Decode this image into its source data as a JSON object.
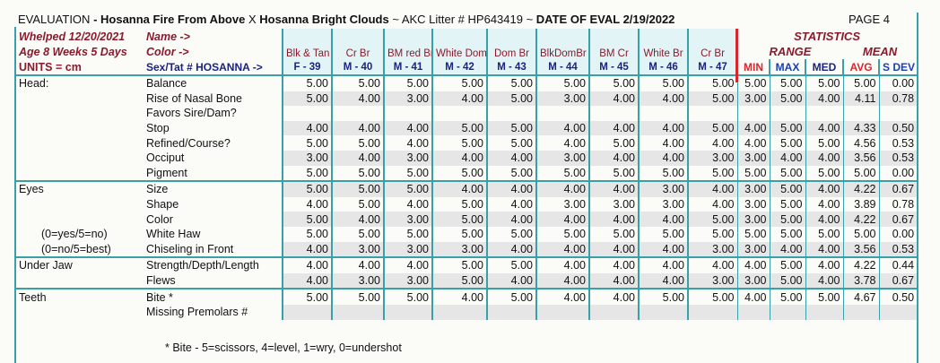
{
  "header": {
    "title": {
      "evaluation": "EVALUATION",
      "sire": "- Hosanna Fire From Above",
      "x": "X",
      "dam": "Hosanna Bright Clouds",
      "litter": "~ AKC Litter # HP643419 ~",
      "date": "DATE OF EVAL 2/19/2022"
    },
    "page": "PAGE 4"
  },
  "info": {
    "whelped": "Whelped 12/20/2021",
    "name": "Name ->",
    "age": "Age 8 Weeks 5 Days",
    "color": "Color ->",
    "units": "UNITS = cm",
    "sex": "Sex/Tat # HOSANNA ->"
  },
  "pups": [
    {
      "color": "Blk & Tan",
      "tat": "F - 39"
    },
    {
      "color": "Cr Br",
      "tat": "M - 40"
    },
    {
      "color": "BM red Br",
      "tat": "M - 41"
    },
    {
      "color": "White Dom",
      "tat": "M - 42"
    },
    {
      "color": "Dom Br",
      "tat": "M - 43"
    },
    {
      "color": "BlkDomBr",
      "tat": "M - 44"
    },
    {
      "color": "BM Cr",
      "tat": "M - 45"
    },
    {
      "color": "White Br",
      "tat": "M - 46"
    },
    {
      "color": "Cr Br",
      "tat": "M - 47"
    }
  ],
  "stats": {
    "title": "STATISTICS",
    "range": "RANGE",
    "mean": "MEAN",
    "columns": [
      "MIN",
      "MAX",
      "MED",
      "AVG",
      "S DEV"
    ]
  },
  "rows": [
    {
      "group": "Head:",
      "label": "Balance",
      "values": [
        "5.00",
        "5.00",
        "5.00",
        "5.00",
        "5.00",
        "5.00",
        "5.00",
        "5.00",
        "5.00"
      ],
      "stats": [
        "5.00",
        "5.00",
        "5.00",
        "5.00",
        "0.00"
      ]
    },
    {
      "label": "Rise of Nasal Bone",
      "values": [
        "5.00",
        "4.00",
        "3.00",
        "4.00",
        "5.00",
        "3.00",
        "4.00",
        "4.00",
        "5.00"
      ],
      "stats": [
        "3.00",
        "5.00",
        "4.00",
        "4.11",
        "0.78"
      ]
    },
    {
      "label": "Favors Sire/Dam?"
    },
    {
      "label": "Stop",
      "values": [
        "4.00",
        "4.00",
        "4.00",
        "5.00",
        "5.00",
        "4.00",
        "4.00",
        "4.00",
        "5.00"
      ],
      "stats": [
        "4.00",
        "5.00",
        "4.00",
        "4.33",
        "0.50"
      ]
    },
    {
      "label": "Refined/Course?",
      "values": [
        "5.00",
        "5.00",
        "4.00",
        "5.00",
        "5.00",
        "4.00",
        "5.00",
        "4.00",
        "4.00"
      ],
      "stats": [
        "4.00",
        "5.00",
        "5.00",
        "4.56",
        "0.53"
      ]
    },
    {
      "label": "Occiput",
      "values": [
        "3.00",
        "4.00",
        "3.00",
        "4.00",
        "4.00",
        "3.00",
        "4.00",
        "4.00",
        "3.00"
      ],
      "stats": [
        "3.00",
        "4.00",
        "4.00",
        "3.56",
        "0.53"
      ]
    },
    {
      "label": "Pigment",
      "values": [
        "5.00",
        "5.00",
        "5.00",
        "5.00",
        "5.00",
        "5.00",
        "5.00",
        "5.00",
        "5.00"
      ],
      "stats": [
        "5.00",
        "5.00",
        "5.00",
        "5.00",
        "0.00"
      ]
    },
    {
      "group": "Eyes",
      "label": "Size",
      "values": [
        "5.00",
        "5.00",
        "5.00",
        "4.00",
        "4.00",
        "4.00",
        "4.00",
        "3.00",
        "4.00"
      ],
      "stats": [
        "3.00",
        "5.00",
        "4.00",
        "4.22",
        "0.67"
      ]
    },
    {
      "label": "Shape",
      "values": [
        "4.00",
        "5.00",
        "4.00",
        "5.00",
        "4.00",
        "3.00",
        "3.00",
        "3.00",
        "4.00"
      ],
      "stats": [
        "3.00",
        "5.00",
        "4.00",
        "3.89",
        "0.78"
      ]
    },
    {
      "label": "Color",
      "values": [
        "5.00",
        "4.00",
        "3.00",
        "5.00",
        "4.00",
        "4.00",
        "4.00",
        "4.00",
        "5.00"
      ],
      "stats": [
        "3.00",
        "5.00",
        "4.00",
        "4.22",
        "0.67"
      ]
    },
    {
      "note": "(0=yes/5=no)",
      "label": "White Haw",
      "values": [
        "5.00",
        "5.00",
        "5.00",
        "5.00",
        "5.00",
        "5.00",
        "5.00",
        "5.00",
        "5.00"
      ],
      "stats": [
        "5.00",
        "5.00",
        "5.00",
        "5.00",
        "0.00"
      ]
    },
    {
      "note": "(0=no/5=best)",
      "label": "Chiseling in Front",
      "values": [
        "4.00",
        "3.00",
        "3.00",
        "3.00",
        "4.00",
        "4.00",
        "4.00",
        "4.00",
        "3.00"
      ],
      "stats": [
        "3.00",
        "4.00",
        "4.00",
        "3.56",
        "0.53"
      ]
    },
    {
      "group": "Under Jaw",
      "label": "Strength/Depth/Length",
      "values": [
        "4.00",
        "4.00",
        "4.00",
        "5.00",
        "5.00",
        "4.00",
        "4.00",
        "4.00",
        "4.00"
      ],
      "stats": [
        "4.00",
        "5.00",
        "4.00",
        "4.22",
        "0.44"
      ]
    },
    {
      "label": "Flews",
      "values": [
        "4.00",
        "3.00",
        "3.00",
        "5.00",
        "4.00",
        "4.00",
        "4.00",
        "4.00",
        "3.00"
      ],
      "stats": [
        "3.00",
        "5.00",
        "4.00",
        "3.78",
        "0.67"
      ]
    },
    {
      "group": "Teeth",
      "label": "Bite *",
      "values": [
        "5.00",
        "5.00",
        "5.00",
        "4.00",
        "5.00",
        "4.00",
        "4.00",
        "5.00",
        "5.00"
      ],
      "stats": [
        "4.00",
        "5.00",
        "5.00",
        "4.67",
        "0.50"
      ]
    },
    {
      "label": "Missing Premolars #"
    }
  ],
  "footnote": "* Bite - 5=scissors, 4=level, 1=wry, 0=undershot"
}
